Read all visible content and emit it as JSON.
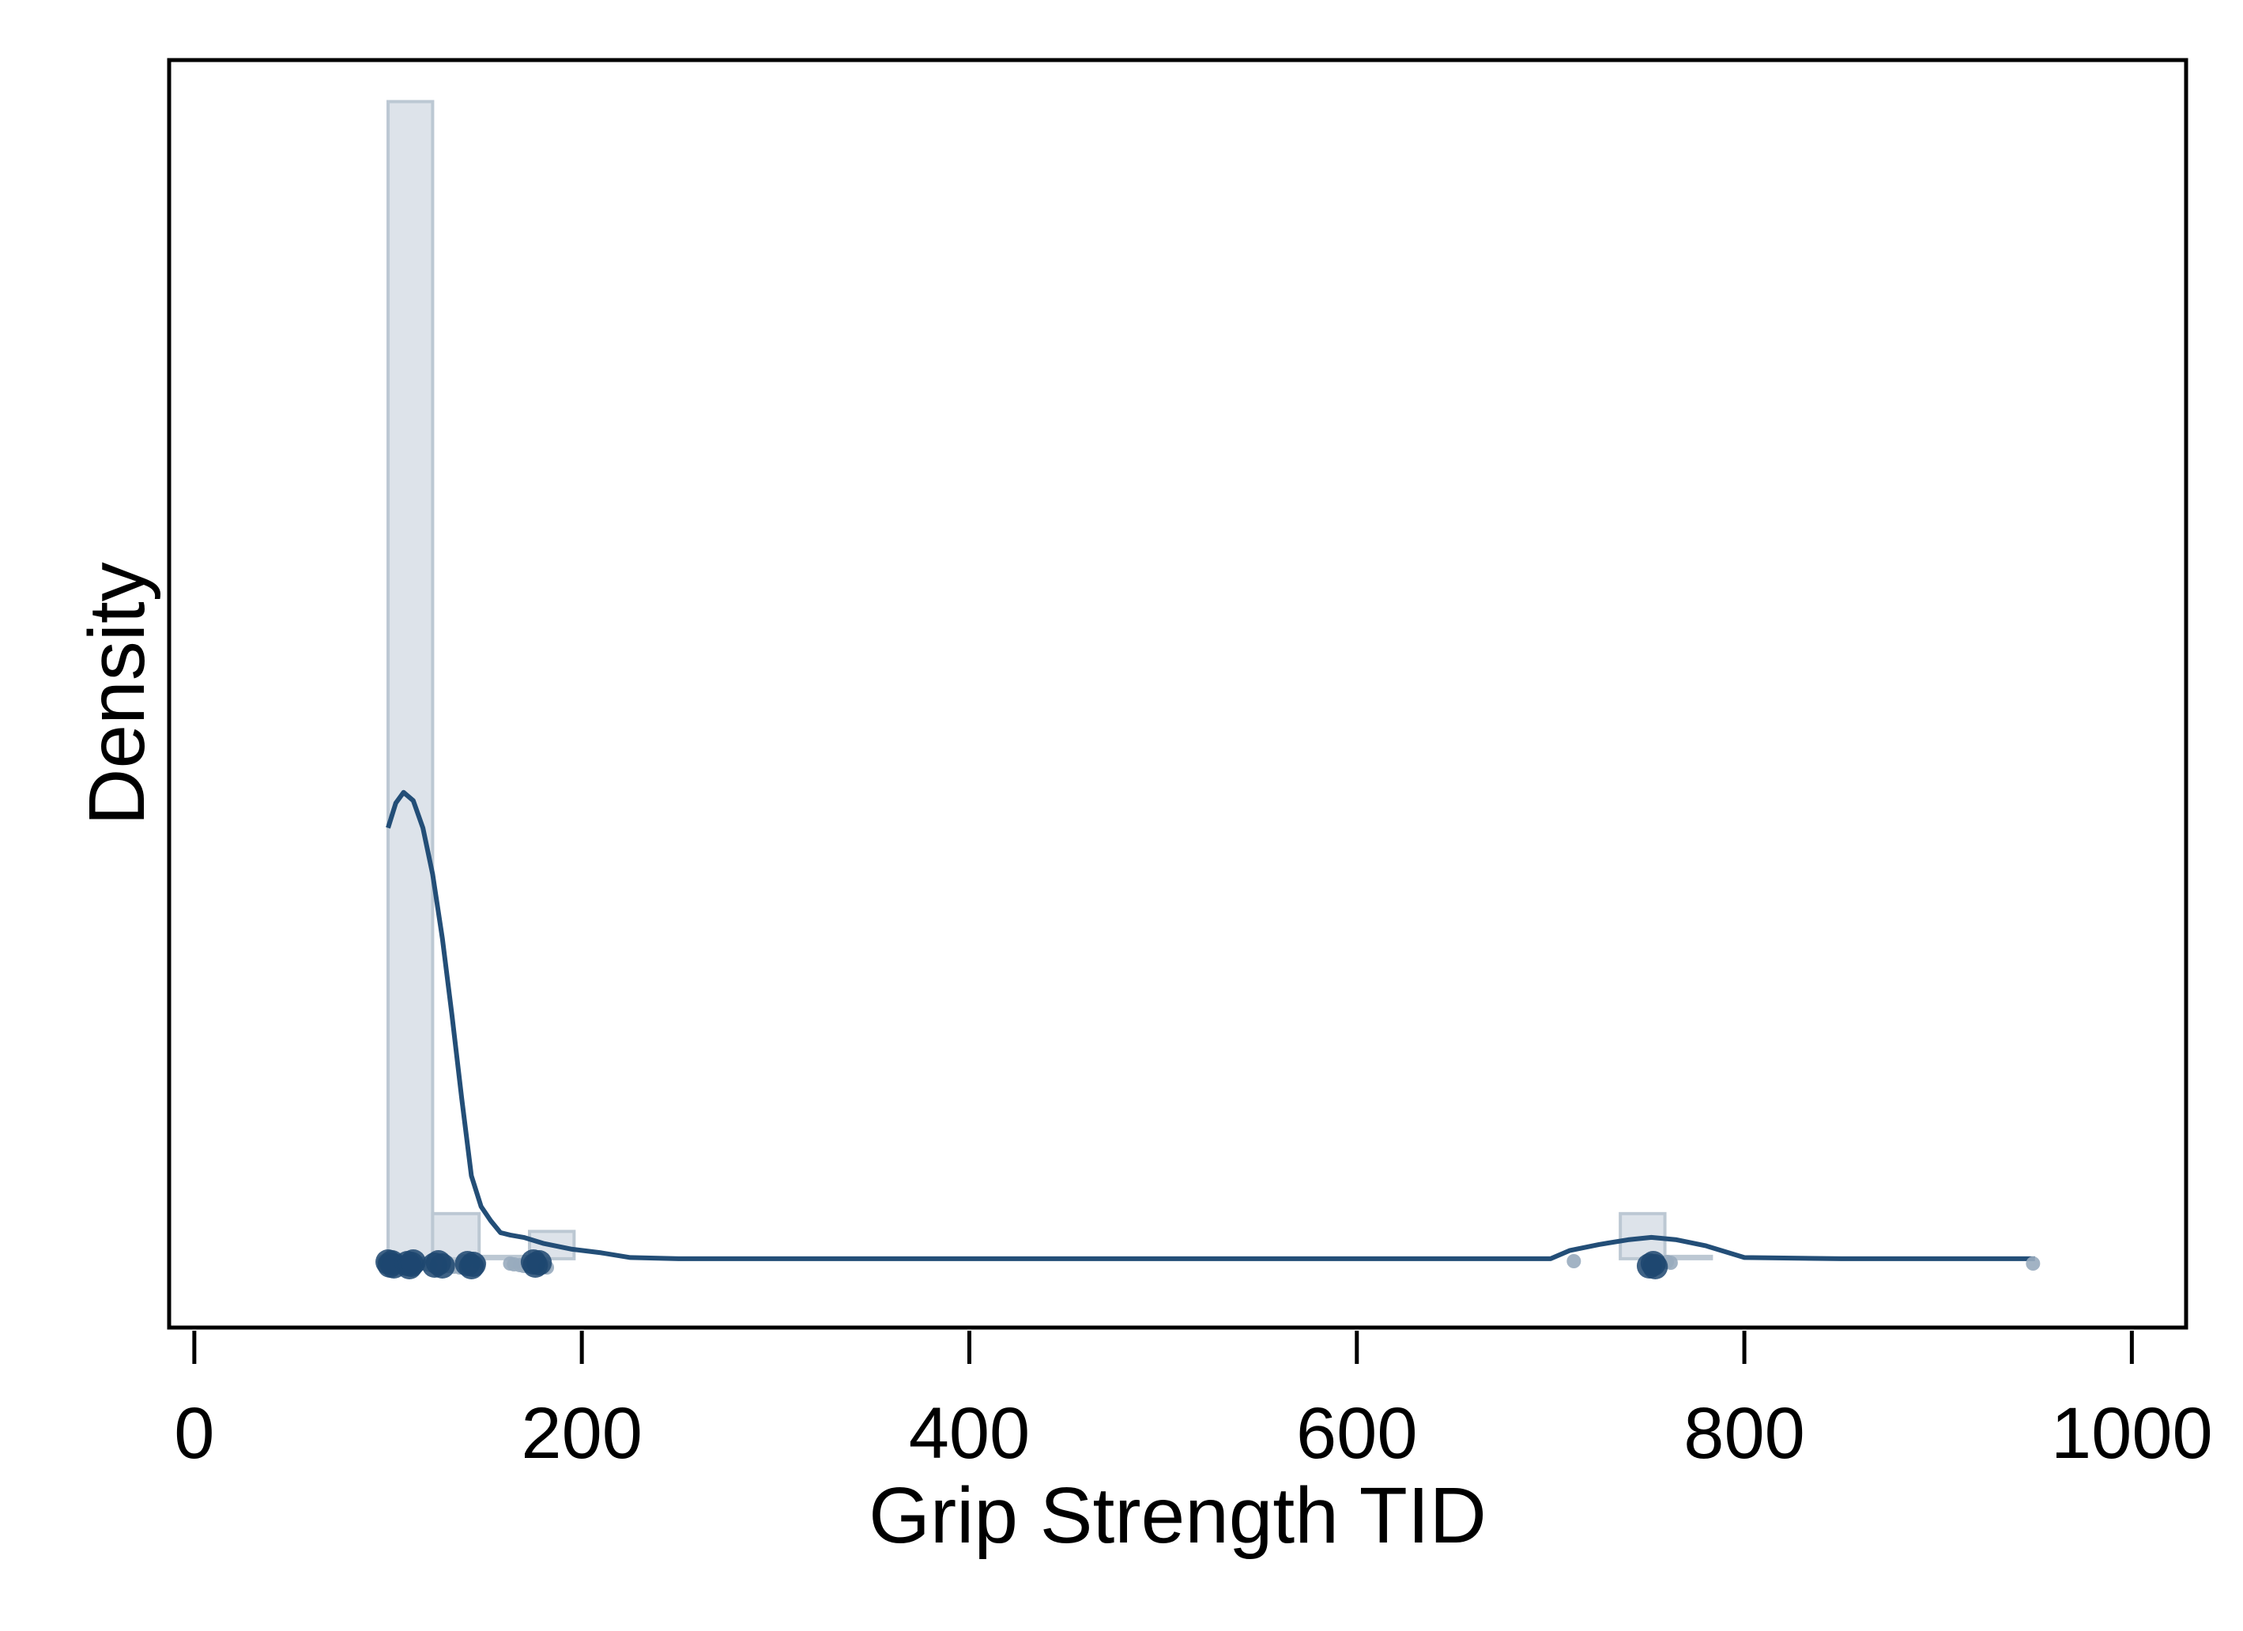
{
  "chart_data": {
    "type": "histogram",
    "xlabel": "Grip Strength TID",
    "ylabel": "Density",
    "xlim": [
      -13,
      1028
    ],
    "ylim": [
      -0.00058,
      0.0101
    ],
    "x_ticks": [
      0,
      200,
      400,
      600,
      800,
      1000
    ],
    "y_ticks_shown": false,
    "grid": false,
    "legend": "none",
    "colors": {
      "bar_fill": "#dde3ea",
      "bar_stroke": "#bcc8d3",
      "kde_line": "#234e77",
      "points_dark": "#1d4670",
      "points_light": "#98abbe",
      "frame": "#000000"
    },
    "histogram": {
      "bins": [
        {
          "from": 100,
          "to": 123,
          "density": 0.00975
        },
        {
          "from": 123,
          "to": 147,
          "density": 0.00038
        },
        {
          "from": 147,
          "to": 173,
          "density": 0.0
        },
        {
          "from": 173,
          "to": 196,
          "density": 0.00023
        },
        {
          "from": 736,
          "to": 759,
          "density": 0.00038
        },
        {
          "from": 759,
          "to": 783,
          "density": 0.0
        }
      ]
    },
    "kde_series": {
      "x": [
        100,
        104,
        108,
        113,
        118,
        123,
        128,
        133,
        138,
        143,
        148,
        153,
        158,
        163,
        170,
        180,
        195,
        210,
        225,
        250,
        400,
        600,
        700,
        710,
        725,
        740,
        752,
        765,
        780,
        800,
        850,
        950
      ],
      "y": [
        0.00363,
        0.00384,
        0.00393,
        0.00386,
        0.00363,
        0.00324,
        0.0027,
        0.00205,
        0.00135,
        0.0007,
        0.00044,
        0.00032,
        0.00022,
        0.0002,
        0.00018,
        0.00013,
        8e-05,
        5e-05,
        1e-05,
        0.0,
        0.0,
        0.0,
        0.0,
        7e-05,
        0.00012,
        0.00016,
        0.00018,
        0.00016,
        0.00011,
        1e-05,
        0.0,
        0.0
      ]
    },
    "rug_points": {
      "dark": [
        100,
        101,
        102,
        103,
        110,
        111,
        112,
        113,
        124,
        126,
        128,
        141,
        143,
        144,
        175,
        176,
        178,
        751,
        753,
        754
      ],
      "light": [
        98,
        105,
        108,
        118,
        120,
        122,
        131,
        134,
        137,
        139,
        140,
        147,
        163,
        165,
        168,
        170,
        181,
        182,
        712,
        760,
        762,
        949
      ]
    }
  }
}
